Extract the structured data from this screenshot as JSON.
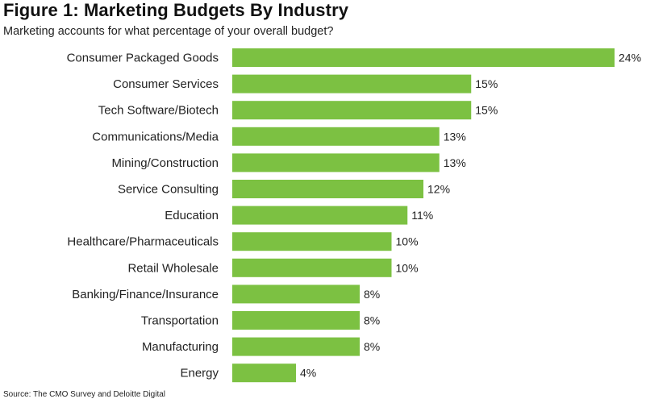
{
  "title": "Figure 1: Marketing Budgets By Industry",
  "subtitle": "Marketing accounts for what percentage of your overall budget?",
  "source": "Source: The CMO Survey and Deloitte Digital",
  "colors": {
    "bar": "#7cc142",
    "text": "#222222"
  },
  "chart_data": {
    "type": "bar",
    "orientation": "horizontal",
    "categories": [
      "Consumer Packaged Goods",
      "Consumer Services",
      "Tech Software/Biotech",
      "Communications/Media",
      "Mining/Construction",
      "Service Consulting",
      "Education",
      "Healthcare/Pharmaceuticals",
      "Retail Wholesale",
      "Banking/Finance/Insurance",
      "Transportation",
      "Manufacturing",
      "Energy"
    ],
    "values": [
      24,
      15,
      15,
      13,
      13,
      12,
      11,
      10,
      10,
      8,
      8,
      8,
      4
    ],
    "value_labels": [
      "24%",
      "15%",
      "15%",
      "13%",
      "13%",
      "12%",
      "11%",
      "10%",
      "10%",
      "8%",
      "8%",
      "8%",
      "4%"
    ],
    "xlim": [
      0,
      24
    ],
    "grid": false,
    "legend": "none"
  }
}
